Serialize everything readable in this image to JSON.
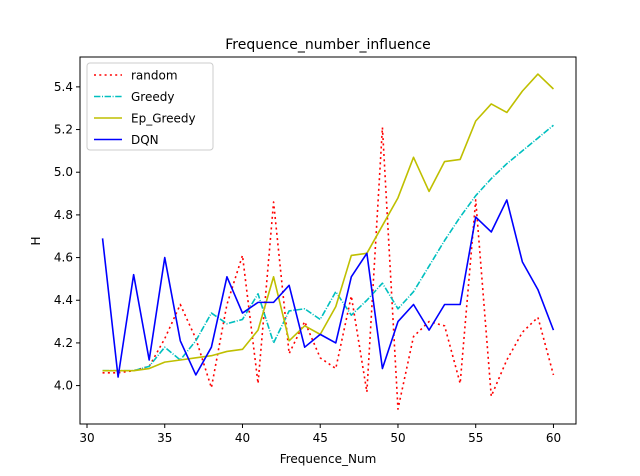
{
  "chart_data": {
    "type": "line",
    "title": "Frequence_number_influence",
    "xlabel": "Frequence_Num",
    "ylabel": "H",
    "xlim": [
      29.55,
      61.45
    ],
    "ylim": [
      3.82,
      5.54
    ],
    "xticks": [
      30,
      35,
      40,
      45,
      50,
      55,
      60
    ],
    "yticks": [
      4.0,
      4.2,
      4.4,
      4.6,
      4.8,
      5.0,
      5.2,
      5.4
    ],
    "xtick_labels": [
      "30",
      "35",
      "40",
      "45",
      "50",
      "55",
      "60"
    ],
    "ytick_labels": [
      "4.0",
      "4.2",
      "4.4",
      "4.6",
      "4.8",
      "5.0",
      "5.2",
      "5.4"
    ],
    "grid": false,
    "legend_position": "top-left",
    "x": [
      31,
      32,
      33,
      34,
      35,
      36,
      37,
      38,
      39,
      40,
      41,
      42,
      43,
      44,
      45,
      46,
      47,
      48,
      49,
      50,
      51,
      52,
      53,
      54,
      55,
      56,
      57,
      58,
      59,
      60
    ],
    "series": [
      {
        "name": "random",
        "color": "#ff0000",
        "style": "dotted",
        "values": [
          4.06,
          4.06,
          4.07,
          4.09,
          4.22,
          4.38,
          4.22,
          3.99,
          4.38,
          4.61,
          4.01,
          4.86,
          4.15,
          4.3,
          4.13,
          4.08,
          4.42,
          3.97,
          5.21,
          3.89,
          4.23,
          4.3,
          4.28,
          4.01,
          4.87,
          3.95,
          4.12,
          4.25,
          4.32,
          4.05
        ]
      },
      {
        "name": "Greedy",
        "color": "#00bfbf",
        "style": "dashdot",
        "values": [
          4.07,
          4.07,
          4.07,
          4.09,
          4.18,
          4.12,
          4.21,
          4.34,
          4.29,
          4.31,
          4.43,
          4.2,
          4.35,
          4.36,
          4.31,
          4.44,
          4.33,
          4.4,
          4.48,
          4.36,
          4.44,
          4.56,
          4.68,
          4.79,
          4.89,
          4.97,
          5.04,
          5.1,
          5.16,
          5.22
        ]
      },
      {
        "name": "Ep_Greedy",
        "color": "#bfbf00",
        "style": "solid",
        "values": [
          4.07,
          4.07,
          4.07,
          4.08,
          4.11,
          4.12,
          4.13,
          4.14,
          4.16,
          4.17,
          4.26,
          4.51,
          4.21,
          4.28,
          4.24,
          4.37,
          4.61,
          4.62,
          4.75,
          4.88,
          5.07,
          4.91,
          5.05,
          5.06,
          5.24,
          5.32,
          5.28,
          5.38,
          5.46,
          5.39
        ]
      },
      {
        "name": "DQN",
        "color": "#0000ff",
        "style": "solid",
        "values": [
          4.69,
          4.04,
          4.52,
          4.12,
          4.6,
          4.21,
          4.05,
          4.18,
          4.51,
          4.34,
          4.39,
          4.39,
          4.47,
          4.18,
          4.24,
          4.2,
          4.51,
          4.62,
          4.08,
          4.3,
          4.38,
          4.26,
          4.38,
          4.38,
          4.79,
          4.72,
          4.87,
          4.58,
          4.45,
          4.26
        ]
      }
    ]
  }
}
